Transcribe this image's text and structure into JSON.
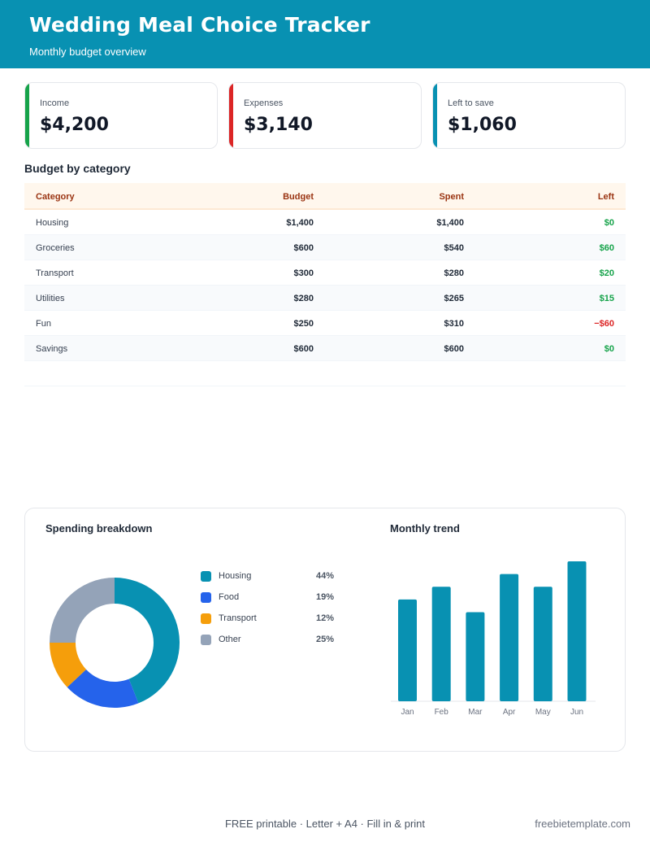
{
  "header": {
    "title": "Wedding Meal Choice Tracker",
    "subtitle": "Monthly budget overview",
    "color": "#0891b2"
  },
  "cards": [
    {
      "label": "Income",
      "value": "$4,200",
      "accent": "#16a34a"
    },
    {
      "label": "Expenses",
      "value": "$3,140",
      "accent": "#dc2626"
    },
    {
      "label": "Left to save",
      "value": "$1,060",
      "accent": "#0891b2"
    }
  ],
  "budget": {
    "title": "Budget by category",
    "columns": [
      "Category",
      "Budget",
      "Spent",
      "Left"
    ],
    "rows": [
      {
        "category": "Housing",
        "budget": "$1,400",
        "spent": "$1,400",
        "left": "$0",
        "status": "pos"
      },
      {
        "category": "Groceries",
        "budget": "$600",
        "spent": "$540",
        "left": "$60",
        "status": "pos"
      },
      {
        "category": "Transport",
        "budget": "$300",
        "spent": "$280",
        "left": "$20",
        "status": "pos"
      },
      {
        "category": "Utilities",
        "budget": "$280",
        "spent": "$265",
        "left": "$15",
        "status": "pos"
      },
      {
        "category": "Fun",
        "budget": "$250",
        "spent": "$310",
        "left": "−$60",
        "status": "neg"
      },
      {
        "category": "Savings",
        "budget": "$600",
        "spent": "$600",
        "left": "$0",
        "status": "pos"
      }
    ]
  },
  "chart_data": [
    {
      "type": "pie",
      "title": "Spending breakdown",
      "categories": [
        "Housing",
        "Food",
        "Transport",
        "Other"
      ],
      "values": [
        44,
        19,
        12,
        25
      ],
      "labels": [
        "44%",
        "19%",
        "12%",
        "25%"
      ],
      "colors": [
        "#0891b2",
        "#2563eb",
        "#f59e0b",
        "#94a3b8"
      ],
      "legend": "right"
    },
    {
      "type": "bar",
      "title": "Monthly trend",
      "categories": [
        "Jan",
        "Feb",
        "Mar",
        "Apr",
        "May",
        "Jun"
      ],
      "values": [
        80,
        90,
        70,
        100,
        90,
        110
      ],
      "ylim": [
        0,
        110
      ],
      "color": "#0891b2",
      "grid": false
    }
  ],
  "footer": {
    "center": "FREE printable  ·  Letter + A4  ·  Fill in & print",
    "right": "freebietemplate.com"
  }
}
